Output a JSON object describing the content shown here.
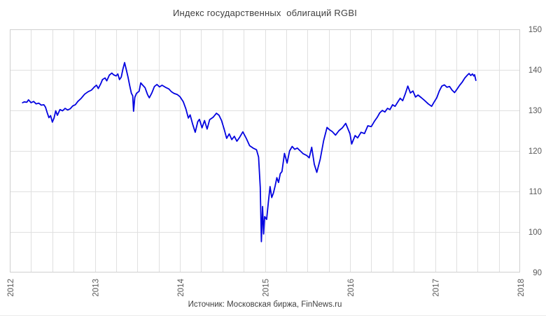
{
  "title": "Индекс государственных  облигаций RGBI",
  "source": "Источник: Московская биржа, FinNews.ru",
  "colors": {
    "line": "#0202e0",
    "grid": "#e0e0e0",
    "plot_border": "#cfcfcf",
    "title_text": "#404040",
    "axis_text": "#595959"
  },
  "chart_data": {
    "type": "line",
    "title": "Индекс государственных облигаций RGBI",
    "xlabel": "",
    "ylabel": "",
    "xlim": [
      2012,
      2018
    ],
    "ylim": [
      90,
      150
    ],
    "x_ticks": [
      2012,
      2013,
      2014,
      2015,
      2016,
      2017,
      2018
    ],
    "y_ticks": [
      90,
      100,
      110,
      120,
      130,
      140,
      150
    ],
    "x_minor_step": 0.25,
    "grid": true,
    "y_axis_side": "right",
    "x_tick_rotation": -90,
    "legend": "none",
    "series": [
      {
        "name": "RGBI",
        "color": "#0202e0",
        "points": [
          [
            2012.15,
            131.9
          ],
          [
            2012.17,
            132.1
          ],
          [
            2012.2,
            132.0
          ],
          [
            2012.22,
            132.6
          ],
          [
            2012.25,
            131.9
          ],
          [
            2012.28,
            132.2
          ],
          [
            2012.31,
            131.6
          ],
          [
            2012.34,
            131.8
          ],
          [
            2012.37,
            131.3
          ],
          [
            2012.4,
            131.4
          ],
          [
            2012.42,
            130.8
          ],
          [
            2012.44,
            129.4
          ],
          [
            2012.46,
            128.2
          ],
          [
            2012.48,
            128.7
          ],
          [
            2012.5,
            127.1
          ],
          [
            2012.52,
            128.1
          ],
          [
            2012.54,
            129.9
          ],
          [
            2012.56,
            128.8
          ],
          [
            2012.59,
            130.2
          ],
          [
            2012.62,
            129.9
          ],
          [
            2012.65,
            130.5
          ],
          [
            2012.68,
            130.1
          ],
          [
            2012.71,
            130.4
          ],
          [
            2012.74,
            131.1
          ],
          [
            2012.77,
            131.4
          ],
          [
            2012.8,
            132.2
          ],
          [
            2012.84,
            133.0
          ],
          [
            2012.88,
            134.0
          ],
          [
            2012.92,
            134.6
          ],
          [
            2012.96,
            135.0
          ],
          [
            2013.0,
            135.9
          ],
          [
            2013.02,
            136.2
          ],
          [
            2013.04,
            135.4
          ],
          [
            2013.07,
            136.6
          ],
          [
            2013.09,
            137.6
          ],
          [
            2013.12,
            138.0
          ],
          [
            2013.14,
            137.3
          ],
          [
            2013.17,
            138.7
          ],
          [
            2013.2,
            139.2
          ],
          [
            2013.22,
            138.8
          ],
          [
            2013.25,
            138.5
          ],
          [
            2013.27,
            139.0
          ],
          [
            2013.29,
            137.6
          ],
          [
            2013.31,
            138.2
          ],
          [
            2013.33,
            140.2
          ],
          [
            2013.35,
            141.8
          ],
          [
            2013.37,
            140.0
          ],
          [
            2013.39,
            138.2
          ],
          [
            2013.41,
            136.1
          ],
          [
            2013.43,
            134.2
          ],
          [
            2013.445,
            133.6
          ],
          [
            2013.455,
            129.8
          ],
          [
            2013.47,
            133.2
          ],
          [
            2013.49,
            134.2
          ],
          [
            2013.52,
            134.7
          ],
          [
            2013.54,
            136.8
          ],
          [
            2013.56,
            136.3
          ],
          [
            2013.59,
            135.6
          ],
          [
            2013.62,
            133.9
          ],
          [
            2013.64,
            133.1
          ],
          [
            2013.67,
            134.3
          ],
          [
            2013.7,
            135.9
          ],
          [
            2013.73,
            136.4
          ],
          [
            2013.76,
            135.8
          ],
          [
            2013.79,
            136.2
          ],
          [
            2013.83,
            135.7
          ],
          [
            2013.87,
            135.3
          ],
          [
            2013.9,
            134.6
          ],
          [
            2013.93,
            134.2
          ],
          [
            2013.97,
            133.9
          ],
          [
            2014.0,
            133.4
          ],
          [
            2014.04,
            132.1
          ],
          [
            2014.07,
            130.4
          ],
          [
            2014.1,
            128.1
          ],
          [
            2014.12,
            128.9
          ],
          [
            2014.15,
            126.6
          ],
          [
            2014.18,
            124.6
          ],
          [
            2014.21,
            127.2
          ],
          [
            2014.23,
            127.8
          ],
          [
            2014.26,
            125.7
          ],
          [
            2014.29,
            127.5
          ],
          [
            2014.32,
            125.4
          ],
          [
            2014.35,
            127.7
          ],
          [
            2014.39,
            128.3
          ],
          [
            2014.43,
            129.3
          ],
          [
            2014.46,
            128.8
          ],
          [
            2014.49,
            127.5
          ],
          [
            2014.52,
            125.4
          ],
          [
            2014.55,
            123.1
          ],
          [
            2014.58,
            124.2
          ],
          [
            2014.61,
            122.8
          ],
          [
            2014.64,
            123.6
          ],
          [
            2014.67,
            122.4
          ],
          [
            2014.7,
            123.3
          ],
          [
            2014.74,
            124.7
          ],
          [
            2014.78,
            123.1
          ],
          [
            2014.82,
            121.3
          ],
          [
            2014.86,
            120.7
          ],
          [
            2014.9,
            120.3
          ],
          [
            2014.925,
            118.5
          ],
          [
            2014.945,
            111.0
          ],
          [
            2014.958,
            97.6
          ],
          [
            2014.972,
            106.3
          ],
          [
            2014.984,
            99.5
          ],
          [
            2014.997,
            103.8
          ],
          [
            2015.02,
            103.1
          ],
          [
            2015.04,
            107.4
          ],
          [
            2015.06,
            111.2
          ],
          [
            2015.08,
            108.5
          ],
          [
            2015.1,
            109.6
          ],
          [
            2015.12,
            111.4
          ],
          [
            2015.14,
            113.4
          ],
          [
            2015.16,
            112.2
          ],
          [
            2015.18,
            114.4
          ],
          [
            2015.2,
            114.9
          ],
          [
            2015.23,
            119.4
          ],
          [
            2015.26,
            117.0
          ],
          [
            2015.29,
            120.0
          ],
          [
            2015.32,
            121.1
          ],
          [
            2015.35,
            120.4
          ],
          [
            2015.38,
            120.7
          ],
          [
            2015.41,
            120.1
          ],
          [
            2015.45,
            119.3
          ],
          [
            2015.49,
            118.9
          ],
          [
            2015.52,
            118.3
          ],
          [
            2015.55,
            120.9
          ],
          [
            2015.58,
            116.7
          ],
          [
            2015.61,
            114.7
          ],
          [
            2015.65,
            118.0
          ],
          [
            2015.69,
            122.5
          ],
          [
            2015.73,
            125.8
          ],
          [
            2015.76,
            125.2
          ],
          [
            2015.79,
            124.8
          ],
          [
            2015.83,
            123.9
          ],
          [
            2015.87,
            125.0
          ],
          [
            2015.91,
            125.7
          ],
          [
            2015.95,
            126.8
          ],
          [
            2016.0,
            124.2
          ],
          [
            2016.02,
            121.7
          ],
          [
            2016.06,
            123.8
          ],
          [
            2016.09,
            123.2
          ],
          [
            2016.13,
            124.6
          ],
          [
            2016.17,
            124.3
          ],
          [
            2016.21,
            126.2
          ],
          [
            2016.25,
            126.0
          ],
          [
            2016.29,
            127.4
          ],
          [
            2016.32,
            128.3
          ],
          [
            2016.35,
            129.4
          ],
          [
            2016.38,
            130.0
          ],
          [
            2016.41,
            129.6
          ],
          [
            2016.44,
            130.5
          ],
          [
            2016.47,
            130.2
          ],
          [
            2016.5,
            131.4
          ],
          [
            2016.53,
            131.0
          ],
          [
            2016.56,
            132.0
          ],
          [
            2016.59,
            133.0
          ],
          [
            2016.62,
            132.4
          ],
          [
            2016.65,
            134.1
          ],
          [
            2016.68,
            136.0
          ],
          [
            2016.71,
            134.3
          ],
          [
            2016.74,
            134.8
          ],
          [
            2016.77,
            133.3
          ],
          [
            2016.8,
            133.8
          ],
          [
            2016.84,
            133.1
          ],
          [
            2016.88,
            132.4
          ],
          [
            2016.92,
            131.6
          ],
          [
            2016.96,
            131.0
          ],
          [
            2016.99,
            132.1
          ],
          [
            2017.02,
            133.1
          ],
          [
            2017.05,
            134.8
          ],
          [
            2017.08,
            136.0
          ],
          [
            2017.11,
            136.3
          ],
          [
            2017.14,
            135.7
          ],
          [
            2017.17,
            135.9
          ],
          [
            2017.2,
            135.0
          ],
          [
            2017.23,
            134.4
          ],
          [
            2017.26,
            135.3
          ],
          [
            2017.29,
            136.2
          ],
          [
            2017.32,
            137.0
          ],
          [
            2017.35,
            138.0
          ],
          [
            2017.38,
            138.7
          ],
          [
            2017.4,
            139.1
          ],
          [
            2017.42,
            138.6
          ],
          [
            2017.44,
            139.0
          ],
          [
            2017.455,
            138.5
          ],
          [
            2017.465,
            138.8
          ],
          [
            2017.48,
            137.4
          ]
        ]
      }
    ]
  }
}
